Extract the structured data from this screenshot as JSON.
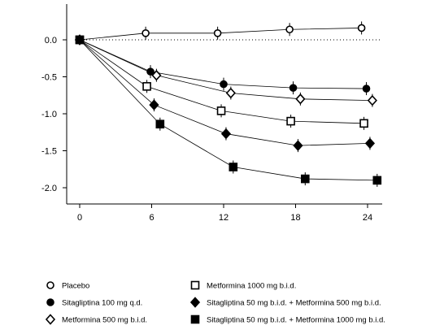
{
  "chart_data": {
    "type": "line",
    "title": "",
    "xlabel": "",
    "ylabel": "",
    "xlim": [
      0,
      25
    ],
    "ylim": [
      -2.2,
      0.5
    ],
    "x_ticks": [
      0,
      6,
      12,
      18,
      24
    ],
    "x_tick_labels": [
      "0",
      "6",
      "12",
      "18",
      "24"
    ],
    "y_ticks": [
      0.0,
      -0.5,
      -1.0,
      -1.5,
      -2.0
    ],
    "y_tick_labels": [
      "0.0",
      "-0.5",
      "-1.0",
      "-1.5",
      "-2.0"
    ],
    "reference_line": {
      "y": 0,
      "style": "dotted"
    },
    "grid": false,
    "legend_position": "bottom",
    "series": [
      {
        "name": "Placebo",
        "marker": "circle-open",
        "color": "#000000",
        "x": [
          0,
          5.5,
          11.5,
          17.5,
          23.5
        ],
        "y": [
          0.0,
          0.09,
          0.09,
          0.14,
          0.16
        ]
      },
      {
        "name": "Sitagliptina 100 mg q.d.",
        "marker": "circle-filled",
        "color": "#000000",
        "x": [
          0,
          5.9,
          12.0,
          17.8,
          23.9
        ],
        "y": [
          0.0,
          -0.43,
          -0.6,
          -0.65,
          -0.66
        ]
      },
      {
        "name": "Metformina 500 mg b.i.d.",
        "marker": "diamond-open",
        "color": "#000000",
        "x": [
          0,
          6.4,
          12.6,
          18.4,
          24.4
        ],
        "y": [
          0.0,
          -0.48,
          -0.72,
          -0.8,
          -0.82
        ]
      },
      {
        "name": "Metformina 1000 mg b.i.d.",
        "marker": "square-open",
        "color": "#000000",
        "x": [
          0,
          5.6,
          11.8,
          17.6,
          23.7
        ],
        "y": [
          0.0,
          -0.63,
          -0.96,
          -1.1,
          -1.13
        ]
      },
      {
        "name": "Sitagliptina 50 mg b.i.d. + Metformina 500 mg b.i.d.",
        "marker": "diamond-filled",
        "color": "#000000",
        "x": [
          0,
          6.2,
          12.2,
          18.2,
          24.2
        ],
        "y": [
          0.0,
          -0.88,
          -1.27,
          -1.43,
          -1.4
        ]
      },
      {
        "name": "Sitagliptina 50 mg b.i.d. + Metformina 1000 mg b.i.d.",
        "marker": "square-filled",
        "color": "#000000",
        "x": [
          0,
          6.7,
          12.8,
          18.8,
          24.8
        ],
        "y": [
          0.0,
          -1.14,
          -1.72,
          -1.88,
          -1.9
        ]
      }
    ]
  },
  "legend": {
    "items": [
      {
        "label": "Placebo",
        "marker": "circle-open"
      },
      {
        "label": "Metformina 1000 mg b.i.d.",
        "marker": "square-open"
      },
      {
        "label": "Sitagliptina 100 mg q.d.",
        "marker": "circle-filled"
      },
      {
        "label": "Sitagliptina 50 mg b.i.d. + Metformina 500 mg b.i.d.",
        "marker": "diamond-filled"
      },
      {
        "label": "Metformina 500 mg b.i.d.",
        "marker": "diamond-open"
      },
      {
        "label": "Sitagliptina 50 mg b.i.d. + Metformina 1000 mg b.i.d.",
        "marker": "square-filled"
      }
    ]
  }
}
